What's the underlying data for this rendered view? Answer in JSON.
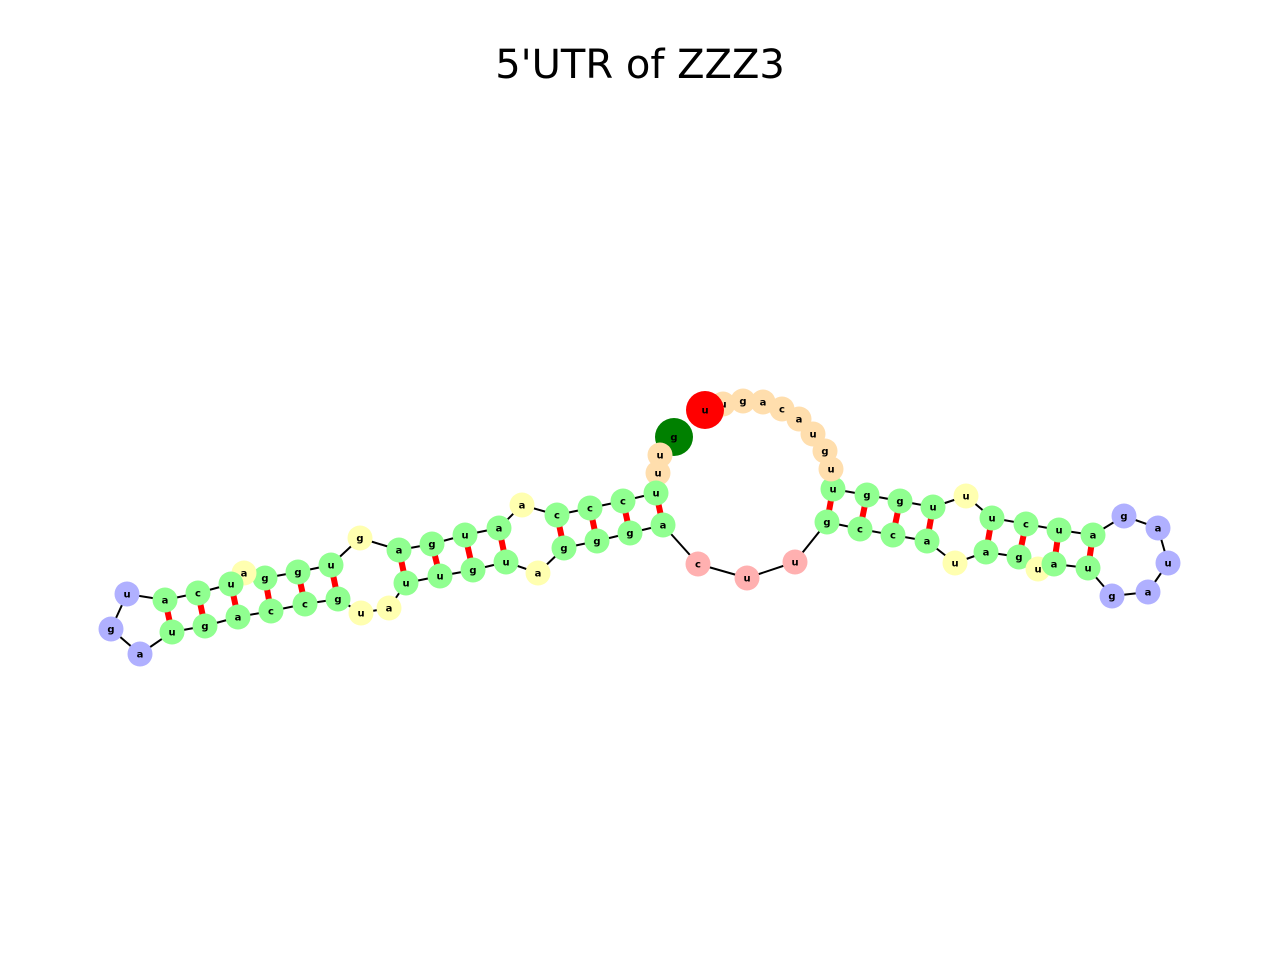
{
  "title": "5'UTR of ZZZ3",
  "colors": {
    "exterior": "#ffdead",
    "stem": "#90ff90",
    "interior": "#ffffb0",
    "hairpin": "#b0b0ff",
    "multiloop": "#ffb0b0",
    "start_marker": "#008000",
    "end_marker": "#ff0000",
    "pair": "#ff0000",
    "backbone": "#000000"
  },
  "sequence": [
    {
      "base": "g",
      "region": "start_marker"
    },
    {
      "base": "u",
      "region": "exterior"
    },
    {
      "base": "u",
      "region": "exterior"
    },
    {
      "base": "u",
      "region": "stem"
    },
    {
      "base": "c",
      "region": "stem"
    },
    {
      "base": "c",
      "region": "stem"
    },
    {
      "base": "c",
      "region": "stem"
    },
    {
      "base": "a",
      "region": "interior"
    },
    {
      "base": "a",
      "region": "stem"
    },
    {
      "base": "u",
      "region": "stem"
    },
    {
      "base": "g",
      "region": "stem"
    },
    {
      "base": "a",
      "region": "stem"
    },
    {
      "base": "g",
      "region": "interior"
    },
    {
      "base": "u",
      "region": "stem"
    },
    {
      "base": "g",
      "region": "stem"
    },
    {
      "base": "g",
      "region": "stem"
    },
    {
      "base": "a",
      "region": "interior"
    },
    {
      "base": "u",
      "region": "stem"
    },
    {
      "base": "c",
      "region": "stem"
    },
    {
      "base": "a",
      "region": "stem"
    },
    {
      "base": "u",
      "region": "hairpin"
    },
    {
      "base": "g",
      "region": "hairpin"
    },
    {
      "base": "a",
      "region": "hairpin"
    },
    {
      "base": "u",
      "region": "stem"
    },
    {
      "base": "g",
      "region": "stem"
    },
    {
      "base": "a",
      "region": "stem"
    },
    {
      "base": "c",
      "region": "stem"
    },
    {
      "base": "c",
      "region": "stem"
    },
    {
      "base": "g",
      "region": "stem"
    },
    {
      "base": "u",
      "region": "interior"
    },
    {
      "base": "a",
      "region": "interior"
    },
    {
      "base": "u",
      "region": "stem"
    },
    {
      "base": "u",
      "region": "stem"
    },
    {
      "base": "g",
      "region": "stem"
    },
    {
      "base": "u",
      "region": "stem"
    },
    {
      "base": "a",
      "region": "interior"
    },
    {
      "base": "g",
      "region": "stem"
    },
    {
      "base": "g",
      "region": "stem"
    },
    {
      "base": "g",
      "region": "stem"
    },
    {
      "base": "a",
      "region": "stem"
    },
    {
      "base": "c",
      "region": "multiloop"
    },
    {
      "base": "u",
      "region": "multiloop"
    },
    {
      "base": "u",
      "region": "multiloop"
    },
    {
      "base": "g",
      "region": "stem"
    },
    {
      "base": "c",
      "region": "stem"
    },
    {
      "base": "c",
      "region": "stem"
    },
    {
      "base": "a",
      "region": "stem"
    },
    {
      "base": "u",
      "region": "interior"
    },
    {
      "base": "a",
      "region": "stem"
    },
    {
      "base": "g",
      "region": "stem"
    },
    {
      "base": "u",
      "region": "interior"
    },
    {
      "base": "a",
      "region": "stem"
    },
    {
      "base": "u",
      "region": "stem"
    },
    {
      "base": "g",
      "region": "hairpin"
    },
    {
      "base": "a",
      "region": "hairpin"
    },
    {
      "base": "u",
      "region": "hairpin"
    },
    {
      "base": "a",
      "region": "hairpin"
    },
    {
      "base": "g",
      "region": "hairpin"
    },
    {
      "base": "a",
      "region": "stem"
    },
    {
      "base": "u",
      "region": "stem"
    },
    {
      "base": "c",
      "region": "stem"
    },
    {
      "base": "u",
      "region": "stem"
    },
    {
      "base": "u",
      "region": "interior"
    },
    {
      "base": "u",
      "region": "stem"
    },
    {
      "base": "g",
      "region": "stem"
    },
    {
      "base": "g",
      "region": "stem"
    },
    {
      "base": "u",
      "region": "stem"
    },
    {
      "base": "u",
      "region": "exterior"
    },
    {
      "base": "g",
      "region": "exterior"
    },
    {
      "base": "u",
      "region": "exterior"
    },
    {
      "base": "a",
      "region": "exterior"
    },
    {
      "base": "c",
      "region": "exterior"
    },
    {
      "base": "a",
      "region": "exterior"
    },
    {
      "base": "g",
      "region": "exterior"
    },
    {
      "base": "u",
      "region": "exterior"
    },
    {
      "base": "u",
      "region": "end_marker"
    }
  ],
  "pairs": [
    [
      3,
      39
    ],
    [
      4,
      38
    ],
    [
      5,
      37
    ],
    [
      6,
      36
    ],
    [
      8,
      34
    ],
    [
      9,
      33
    ],
    [
      10,
      32
    ],
    [
      11,
      31
    ],
    [
      13,
      28
    ],
    [
      14,
      27
    ],
    [
      15,
      26
    ],
    [
      17,
      25
    ],
    [
      18,
      24
    ],
    [
      19,
      23
    ],
    [
      43,
      66
    ],
    [
      44,
      65
    ],
    [
      45,
      64
    ],
    [
      46,
      63
    ],
    [
      48,
      61
    ],
    [
      49,
      60
    ],
    [
      51,
      59
    ],
    [
      52,
      58
    ]
  ]
}
